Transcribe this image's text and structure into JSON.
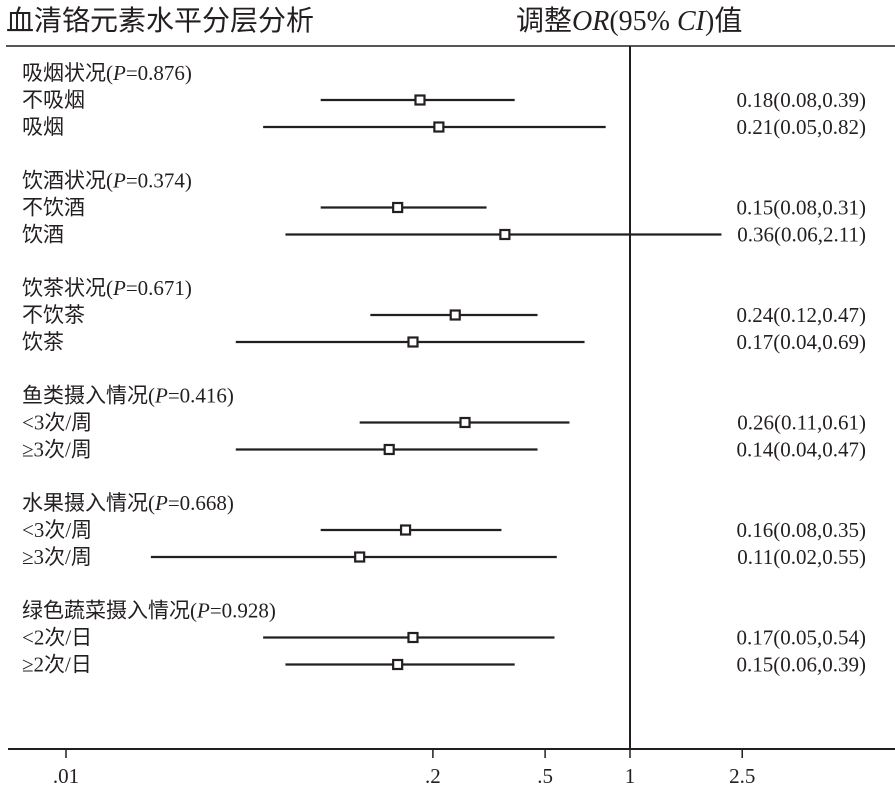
{
  "chart_data": {
    "type": "forest",
    "title_left": "血清铬元素水平分层分析",
    "title_right_prefix": "调整",
    "title_right_or": "OR",
    "title_right_mid": "(95% ",
    "title_right_ci": "CI",
    "title_right_suffix": ")值",
    "x_scale": "log",
    "reference_value": 1,
    "xlim": [
      0.0022,
      20
    ],
    "x_ticks": [
      {
        "value": 0.01,
        "label": ".01"
      },
      {
        "value": 0.2,
        "label": ".2"
      },
      {
        "value": 0.5,
        "label": ".5"
      },
      {
        "value": 1,
        "label": "1"
      },
      {
        "value": 2.5,
        "label": "2.5"
      }
    ],
    "groups": [
      {
        "name": "吸烟状况",
        "p_label": "P",
        "p_value": "=0.876)",
        "rows": [
          {
            "label": "不吸烟",
            "or": 0.18,
            "lower": 0.08,
            "upper": 0.39,
            "ci_text": "0.18(0.08,0.39)"
          },
          {
            "label": "吸烟",
            "or": 0.21,
            "lower": 0.05,
            "upper": 0.82,
            "ci_text": "0.21(0.05,0.82)"
          }
        ]
      },
      {
        "name": "饮酒状况",
        "p_label": "P",
        "p_value": "=0.374)",
        "rows": [
          {
            "label": "不饮酒",
            "or": 0.15,
            "lower": 0.08,
            "upper": 0.31,
            "ci_text": "0.15(0.08,0.31)"
          },
          {
            "label": "饮酒",
            "or": 0.36,
            "lower": 0.06,
            "upper": 2.11,
            "ci_text": "0.36(0.06,2.11)"
          }
        ]
      },
      {
        "name": "饮茶状况",
        "p_label": "P",
        "p_value": "=0.671)",
        "rows": [
          {
            "label": "不饮茶",
            "or": 0.24,
            "lower": 0.12,
            "upper": 0.47,
            "ci_text": "0.24(0.12,0.47)"
          },
          {
            "label": "饮茶",
            "or": 0.17,
            "lower": 0.04,
            "upper": 0.69,
            "ci_text": "0.17(0.04,0.69)"
          }
        ]
      },
      {
        "name": "鱼类摄入情况",
        "p_label": "P",
        "p_value": "=0.416)",
        "rows": [
          {
            "label": "<3次/周",
            "or": 0.26,
            "lower": 0.11,
            "upper": 0.61,
            "ci_text": "0.26(0.11,0.61)"
          },
          {
            "label": "≥3次/周",
            "or": 0.14,
            "lower": 0.04,
            "upper": 0.47,
            "ci_text": "0.14(0.04,0.47)"
          }
        ]
      },
      {
        "name": "水果摄入情况",
        "p_label": "P",
        "p_value": "=0.668)",
        "rows": [
          {
            "label": "<3次/周",
            "or": 0.16,
            "lower": 0.08,
            "upper": 0.35,
            "ci_text": "0.16(0.08,0.35)"
          },
          {
            "label": "≥3次/周",
            "or": 0.11,
            "lower": 0.02,
            "upper": 0.55,
            "ci_text": "0.11(0.02,0.55)"
          }
        ]
      },
      {
        "name": "绿色蔬菜摄入情况",
        "p_label": "P",
        "p_value": "=0.928)",
        "rows": [
          {
            "label": "<2次/日",
            "or": 0.17,
            "lower": 0.05,
            "upper": 0.54,
            "ci_text": "0.17(0.05,0.54)"
          },
          {
            "label": "≥2次/日",
            "or": 0.15,
            "lower": 0.06,
            "upper": 0.39,
            "ci_text": "0.15(0.06,0.39)"
          }
        ]
      }
    ]
  }
}
